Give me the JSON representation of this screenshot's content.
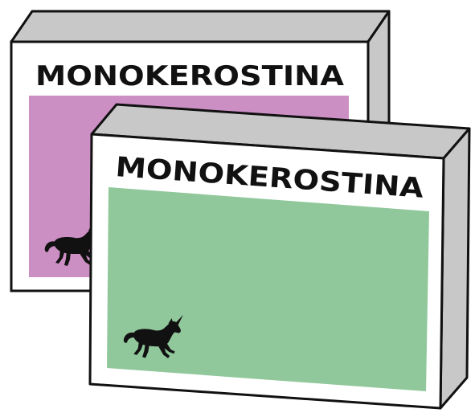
{
  "boxes": [
    {
      "name": "back-box",
      "title": "MONOKEROSTINA",
      "panel_color": "#cc8fc4",
      "mascot_icon": "unicorn-icon"
    },
    {
      "name": "front-box",
      "title": "MONOKEROSTINA",
      "panel_color": "#90c89c",
      "mascot_icon": "unicorn-icon"
    }
  ],
  "colors": {
    "box_face": "#ffffff",
    "box_side": "#c8c8c8",
    "outline": "#111111",
    "mascot": "#111111"
  }
}
